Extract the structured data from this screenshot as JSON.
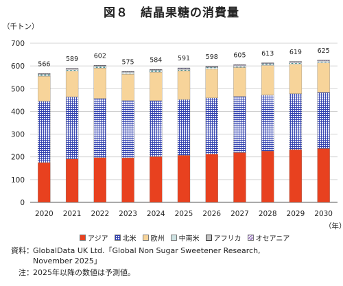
{
  "title": "図８　結晶果糖の消費量",
  "unit_y": "（千トン）",
  "unit_x": "（年）",
  "colors": {
    "asia": "#e8411f",
    "north_america": "#2f3fae",
    "europe": "#f7d49a",
    "latin_america": "#3aa7a0",
    "africa": "#3a3a3a",
    "oceania": "#7a4fa8"
  },
  "legend": [
    {
      "name": "アジア",
      "key": "asia"
    },
    {
      "name": "北米",
      "key": "north_america"
    },
    {
      "name": "欧州",
      "key": "europe"
    },
    {
      "name": "中南米",
      "key": "latin_america"
    },
    {
      "name": "アフリカ",
      "key": "africa"
    },
    {
      "name": "オセアニア",
      "key": "oceania"
    }
  ],
  "chart_data": {
    "type": "bar",
    "stacked": true,
    "categories": [
      "2020",
      "2021",
      "2022",
      "2023",
      "2024",
      "2025",
      "2026",
      "2027",
      "2028",
      "2029",
      "2030"
    ],
    "ylim": [
      0,
      700
    ],
    "yticks": [
      0,
      100,
      200,
      300,
      400,
      500,
      600,
      700
    ],
    "grid": true,
    "legend_position": "bottom",
    "totals": [
      566,
      589,
      602,
      575,
      584,
      591,
      598,
      605,
      613,
      619,
      625
    ],
    "series": [
      {
        "name": "アジア",
        "key": "asia",
        "pattern": "solid",
        "values": [
          175,
          191,
          197,
          196,
          201,
          207,
          212,
          219,
          226,
          232,
          237
        ]
      },
      {
        "name": "北米",
        "key": "north_america",
        "pattern": "grid",
        "values": [
          270,
          273,
          260,
          252,
          246,
          245,
          247,
          247,
          246,
          246,
          247
        ]
      },
      {
        "name": "欧州",
        "key": "europe",
        "pattern": "solid",
        "values": [
          110,
          113,
          134,
          116,
          126,
          127,
          127,
          127,
          130,
          129,
          129
        ]
      },
      {
        "name": "中南米",
        "key": "latin_america",
        "pattern": "dots",
        "values": [
          6,
          6,
          6,
          6,
          6,
          6,
          6,
          6,
          6,
          6,
          6
        ]
      },
      {
        "name": "アフリカ",
        "key": "africa",
        "pattern": "dots",
        "values": [
          3,
          3,
          3,
          3,
          3,
          3,
          3,
          3,
          3,
          3,
          3
        ]
      },
      {
        "name": "オセアニア",
        "key": "oceania",
        "pattern": "cross",
        "values": [
          2,
          3,
          2,
          2,
          2,
          3,
          3,
          3,
          2,
          3,
          3
        ]
      }
    ]
  },
  "source": {
    "label": "資料",
    "line1": "GlobalData UK Ltd.「Global Non Sugar Sweetener Research,",
    "line2": "November 2025」"
  },
  "note": {
    "label": "注",
    "text": "2025年以降の数値は予測値。"
  }
}
